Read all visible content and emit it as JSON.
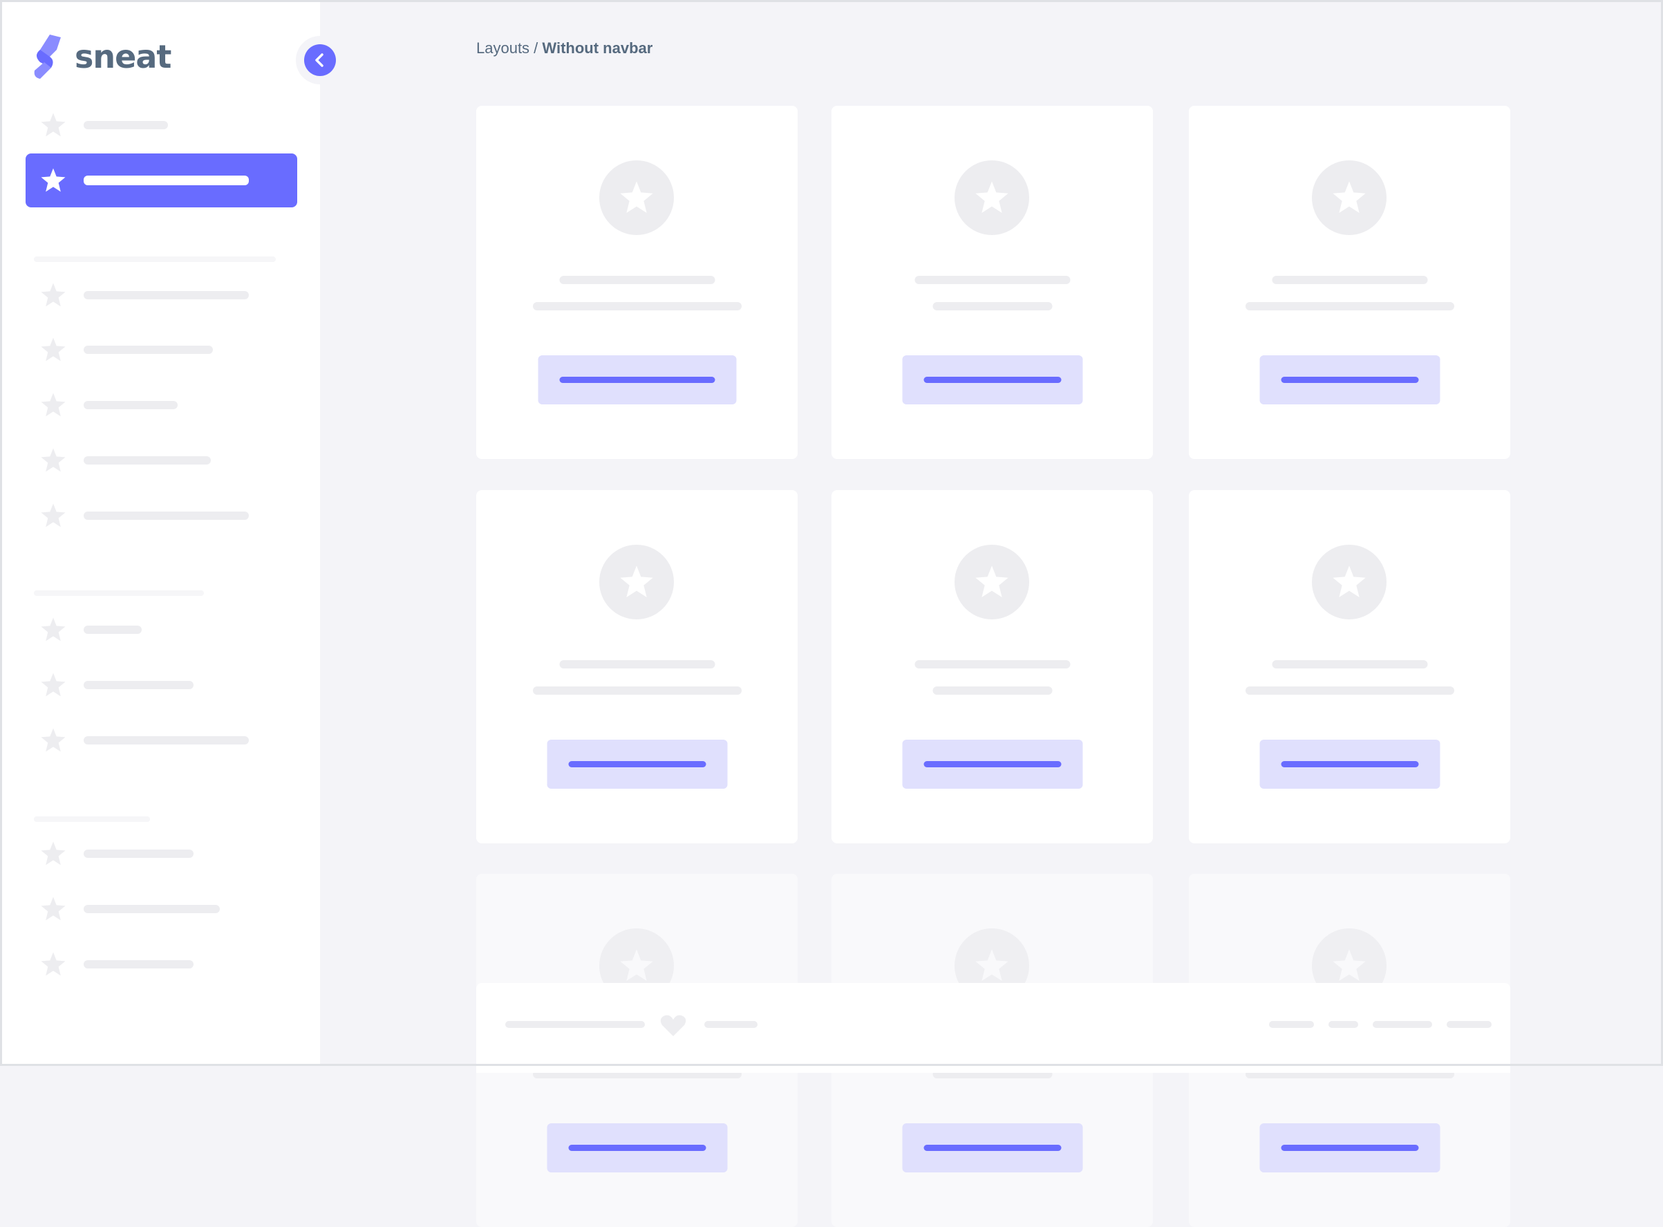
{
  "brand": {
    "name": "sneat",
    "accent": "#696cff",
    "text_color": "#566a7f"
  },
  "breadcrumb": {
    "parent": "Layouts",
    "separator": " / ",
    "current": "Without navbar"
  },
  "sidebar": {
    "collapse_icon": "chevron-left-icon",
    "active_index": 1,
    "item_icon": "star-icon"
  },
  "footer": {
    "icon": "heart-icon"
  }
}
